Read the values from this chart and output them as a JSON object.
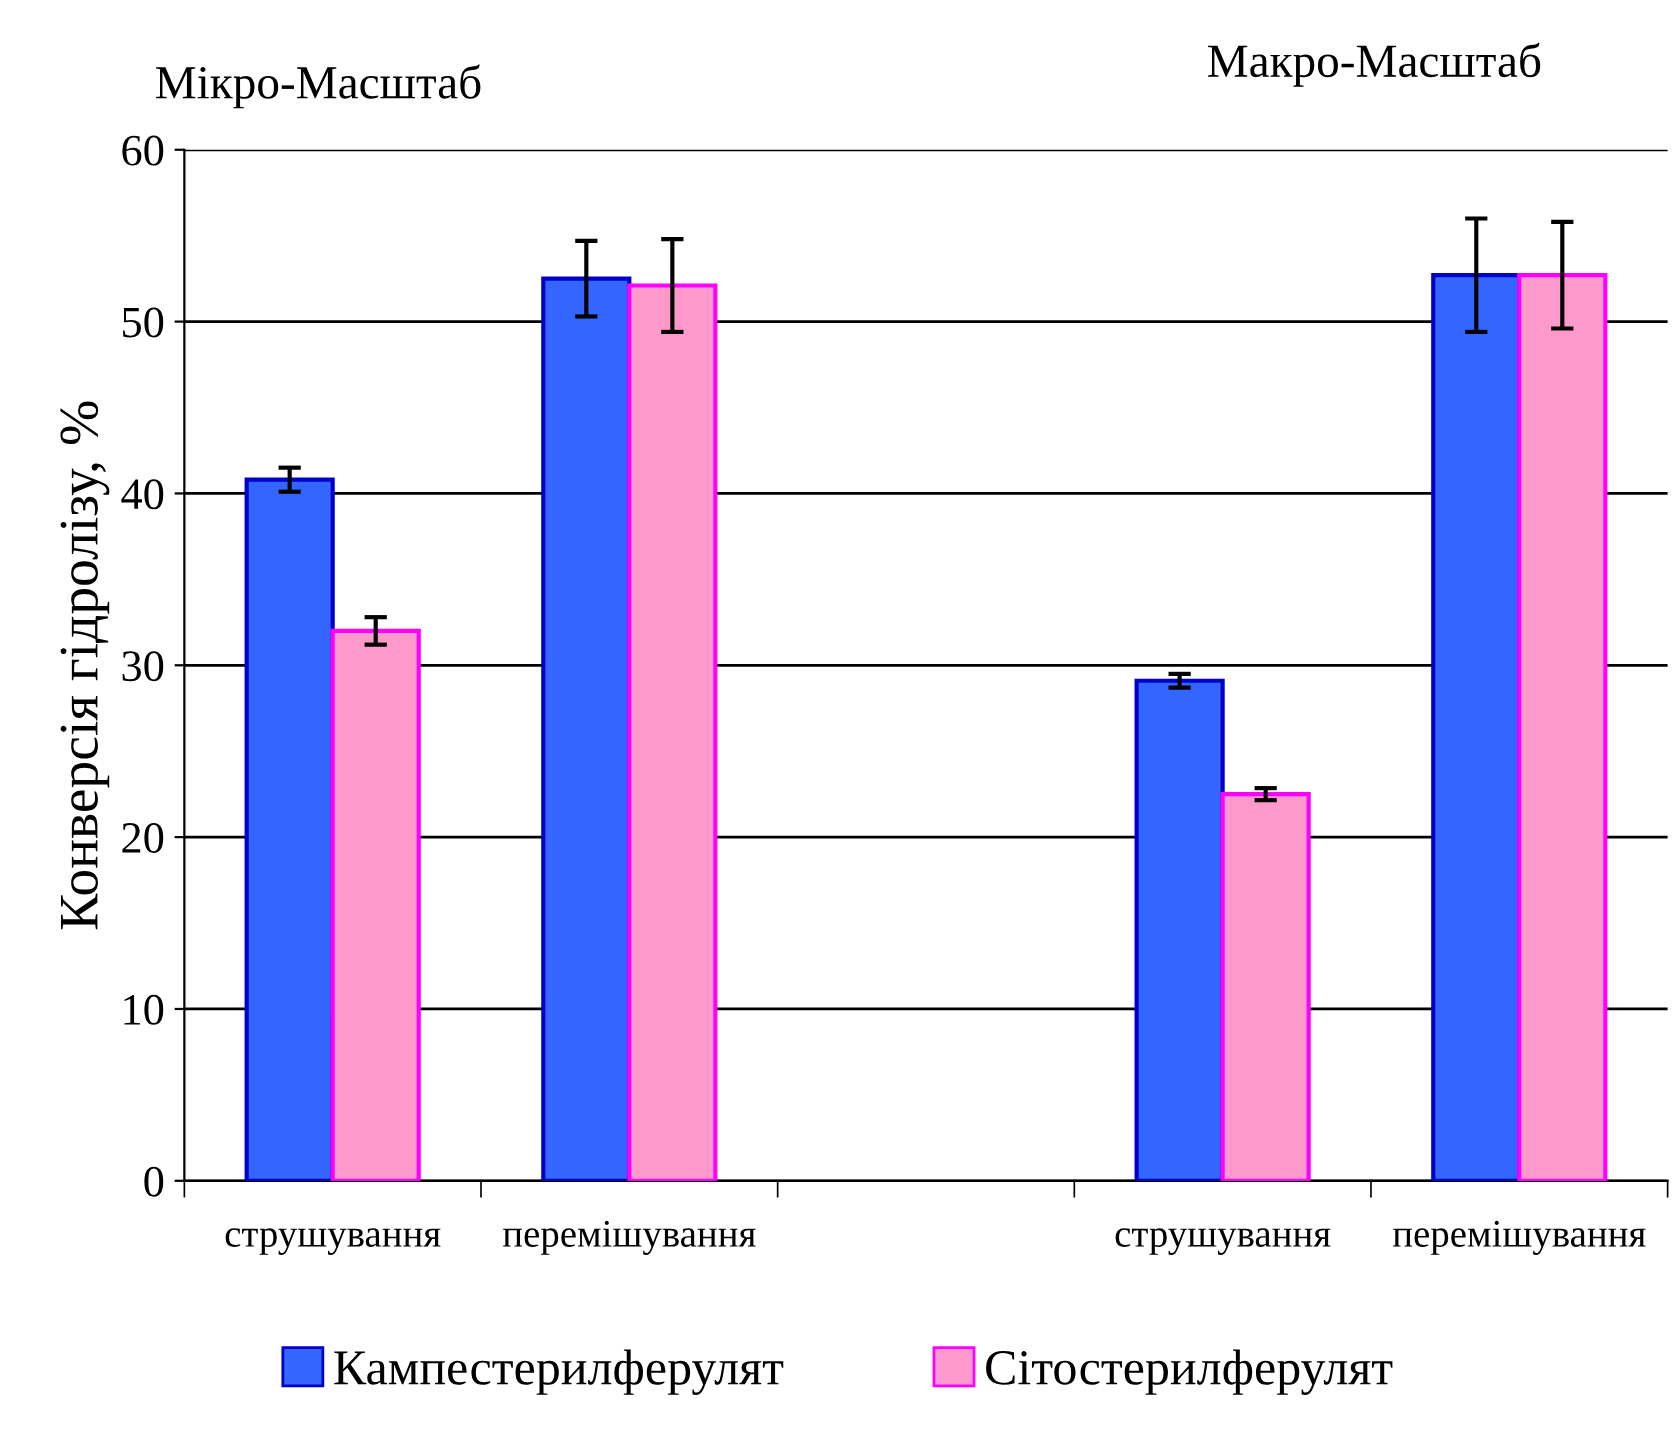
{
  "chart_data": {
    "type": "bar",
    "ylabel": "Конверсія гідролізу, %",
    "annotations": [
      "Мікро-Масштаб",
      "Макро-Масштаб"
    ],
    "categories": [
      "струшування",
      "перемішування",
      null,
      "струшування",
      "перемішування"
    ],
    "series": [
      {
        "name": "Кампестерилферулят",
        "color": "#3366ff",
        "values": [
          40.8,
          52.5,
          null,
          29.1,
          52.7
        ],
        "errors": [
          0.7,
          2.2,
          null,
          0.4,
          3.3
        ]
      },
      {
        "name": "Сітостерилферулят",
        "color": "#ff99cc",
        "values": [
          32.0,
          52.1,
          null,
          22.5,
          52.7
        ],
        "errors": [
          0.8,
          2.7,
          null,
          0.35,
          3.1
        ]
      }
    ],
    "ylim": [
      0,
      60
    ],
    "yticks": [
      0,
      10,
      20,
      30,
      40,
      50,
      60
    ],
    "grid": "y",
    "legend": "bottom"
  }
}
